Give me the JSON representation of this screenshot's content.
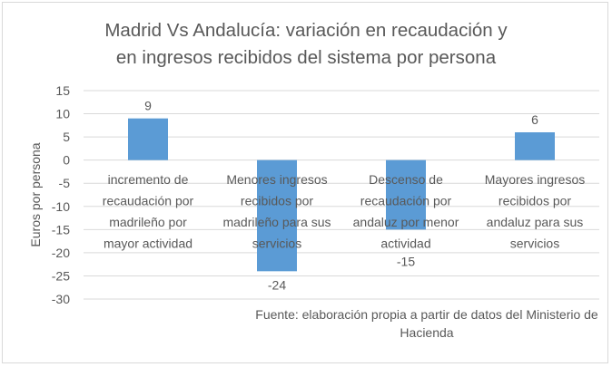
{
  "chart_data": {
    "type": "bar",
    "title": [
      "Madrid Vs Andalucía: variación en recaudación y",
      "en ingresos recibidos del sistema por persona"
    ],
    "ylabel": "Euros por persona",
    "xlabel": "",
    "ylim": [
      -30,
      15
    ],
    "ytick_step": 5,
    "grid": true,
    "categories": [
      [
        "incremento de",
        "recaudación por",
        "madrileño por",
        "mayor actividad"
      ],
      [
        "Menores ingresos",
        "recibidos por",
        "madrileño para sus",
        "servicios"
      ],
      [
        "Descenso de",
        "recaudación por",
        "andaluz por menor",
        "actividad"
      ],
      [
        "Mayores ingresos",
        "recibidos por",
        "andaluz para sus",
        "servicios"
      ]
    ],
    "values": [
      9,
      -24,
      -15,
      6
    ],
    "bar_color": "#5b9bd5",
    "source": [
      "Fuente: elaboración propia a partir de datos del Ministerio de",
      "Hacienda"
    ]
  }
}
